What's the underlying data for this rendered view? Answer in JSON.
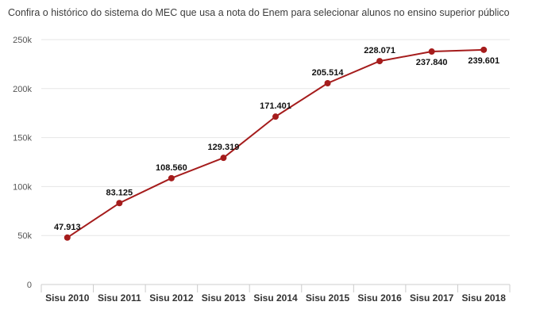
{
  "page_title": "Confira o histórico do sistema do MEC que usa a nota do Enem para selecionar alunos no ensino superior público",
  "colors": {
    "line": "#a51c1c",
    "grid": "#e6e6e6",
    "axis": "#cccccc"
  },
  "chart_data": {
    "type": "line",
    "title": "Confira o histórico do sistema do MEC que usa a nota do Enem para selecionar alunos no ensino superior público",
    "xlabel": "",
    "ylabel": "",
    "categories": [
      "Sisu 2010",
      "Sisu 2011",
      "Sisu 2012",
      "Sisu 2013",
      "Sisu 2014",
      "Sisu 2015",
      "Sisu 2016",
      "Sisu 2017",
      "Sisu 2018"
    ],
    "values": [
      47913,
      83125,
      108560,
      129319,
      171401,
      205514,
      228071,
      237840,
      239601
    ],
    "data_labels": [
      "47.913",
      "83.125",
      "108.560",
      "129.319",
      "171.401",
      "205.514",
      "228.071",
      "237.840",
      "239.601"
    ],
    "ylim": [
      0,
      250000
    ],
    "y_ticks": [
      0,
      50000,
      100000,
      150000,
      200000,
      250000
    ],
    "y_tick_labels": [
      "0",
      "50k",
      "100k",
      "150k",
      "200k",
      "250k"
    ],
    "grid": true,
    "legend": "none"
  }
}
